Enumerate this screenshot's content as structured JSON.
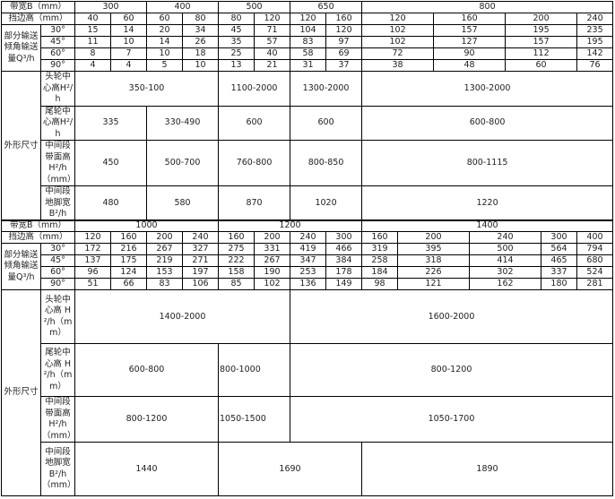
{
  "upper": {
    "width_label": "带宽B（mm）",
    "widths": [
      "300",
      "400",
      "500",
      "650",
      "800"
    ],
    "flange_label": "挡边高（mm）",
    "flanges": [
      "40",
      "60",
      "60",
      "80",
      "80",
      "120",
      "120",
      "160",
      "120",
      "160",
      "200",
      "240"
    ],
    "capacity_label": "部分输送倾角输送量Q³/h",
    "capacity": [
      {
        "angle": "30°",
        "values": [
          "15",
          "14",
          "20",
          "34",
          "45",
          "71",
          "104",
          "120",
          "102",
          "157",
          "195",
          "235"
        ]
      },
      {
        "angle": "45°",
        "values": [
          "11",
          "10",
          "14",
          "26",
          "35",
          "57",
          "83",
          "97",
          "102",
          "127",
          "157",
          "195"
        ]
      },
      {
        "angle": "60°",
        "values": [
          "8",
          "7",
          "10",
          "18",
          "25",
          "40",
          "58",
          "69",
          "72",
          "90",
          "112",
          "142"
        ]
      },
      {
        "angle": "90°",
        "values": [
          "4",
          "4",
          "5",
          "10",
          "13",
          "21",
          "31",
          "37",
          "38",
          "48",
          "60",
          "76"
        ]
      }
    ],
    "dims_label": "外形尺寸",
    "dims": [
      {
        "label": "头轮中心高H²/h",
        "values": [
          "350-100",
          "1100-2000",
          "1300-2000",
          "1300-2000"
        ]
      },
      {
        "label": "尾轮中心高H²/h",
        "values": [
          "335",
          "330-490",
          "600",
          "600",
          "600-800"
        ]
      },
      {
        "label": "中间段带面高H²/h（mm）",
        "values": [
          "450",
          "500-700",
          "760-800",
          "800-850",
          "800-1115"
        ]
      },
      {
        "label": "中间段地脚宽B²/h",
        "values": [
          "480",
          "580",
          "870",
          "1020",
          "1220"
        ]
      }
    ]
  },
  "lower": {
    "width_label": "带宽B（mm）",
    "widths": [
      "1000",
      "1200",
      "1400"
    ],
    "flange_label": "挡边高（mm）",
    "flanges": [
      "120",
      "160",
      "200",
      "240",
      "160",
      "200",
      "240",
      "300",
      "160",
      "200",
      "240",
      "300",
      "400"
    ],
    "capacity_label": "部分输送倾角输送量Q³/h",
    "capacity": [
      {
        "angle": "30°",
        "values": [
          "172",
          "216",
          "267",
          "327",
          "275",
          "331",
          "419",
          "466",
          "319",
          "395",
          "500",
          "564",
          "794"
        ]
      },
      {
        "angle": "45°",
        "values": [
          "137",
          "175",
          "219",
          "271",
          "222",
          "267",
          "347",
          "384",
          "258",
          "318",
          "414",
          "465",
          "680"
        ]
      },
      {
        "angle": "60°",
        "values": [
          "96",
          "124",
          "153",
          "197",
          "158",
          "190",
          "253",
          "178",
          "184",
          "226",
          "302",
          "337",
          "524"
        ]
      },
      {
        "angle": "90°",
        "values": [
          "51",
          "66",
          "83",
          "106",
          "85",
          "102",
          "136",
          "149",
          "98",
          "121",
          "162",
          "180",
          "281"
        ]
      }
    ],
    "dims_label": "外形尺寸",
    "dims": [
      {
        "label": "头轮中心高 H²/h（mm）",
        "values": [
          "1400-2000",
          "1600-2000"
        ]
      },
      {
        "label": "尾轮中心高 H²/h（mm）",
        "values": [
          "600-800",
          "800-1000",
          "800-1200"
        ]
      },
      {
        "label": "中间段带面高H²/h（mm）",
        "values": [
          "800-1200",
          "1050-1500",
          "1050-1700"
        ]
      },
      {
        "label": "中间段地脚宽 B²/h（mm）",
        "values": [
          "1440",
          "1690",
          "1890"
        ]
      }
    ]
  }
}
